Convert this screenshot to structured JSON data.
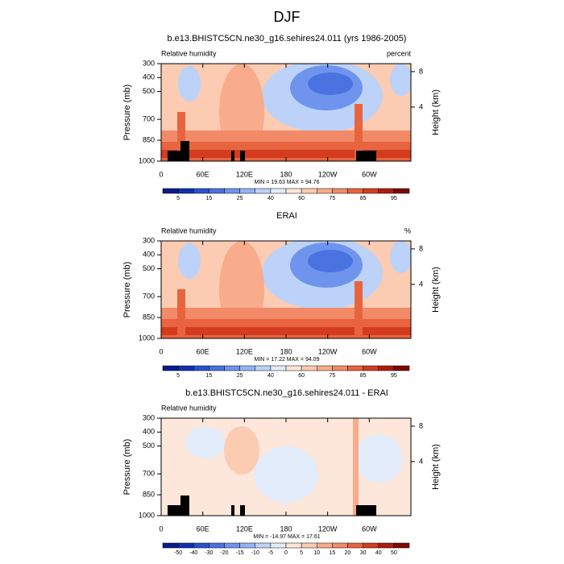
{
  "title": "DJF",
  "chart_data": [
    {
      "type": "contour",
      "title": "b.e13.BHISTC5CN.ne30_g16.sehires24.011 (yrs 1986-2005)",
      "left_label": "Relative humidity",
      "right_label": "percent",
      "ylabel": "Pressure (mb)",
      "y2label": "Height (km)",
      "xlim": [
        0,
        360
      ],
      "xticks": [
        0,
        {
          "value": 60,
          "label": "60E"
        },
        {
          "value": 120,
          "label": "120E"
        },
        180,
        {
          "value": 240,
          "label": "120W"
        },
        {
          "value": 300,
          "label": "60W"
        }
      ],
      "ylim": [
        1000,
        300
      ],
      "yticks": [
        300,
        400,
        500,
        700,
        850,
        1000
      ],
      "y2lim": [
        -2.1,
        8.9
      ],
      "y2ticks": [
        4,
        8
      ],
      "stats": "MIN = 19.63  MAX = 94.76",
      "colorbar": {
        "labels": [
          5,
          15,
          25,
          40,
          60,
          75,
          85,
          95
        ],
        "colors": [
          "#0a1c8c",
          "#1030b0",
          "#2a50d0",
          "#4a72e0",
          "#6e94ee",
          "#94b4f4",
          "#bcd2f8",
          "#e2ecfa",
          "#fde6da",
          "#fbcbb2",
          "#f8ac8c",
          "#f28a68",
          "#e8643e",
          "#d43c20",
          "#b01c0c",
          "#7a0a04"
        ]
      }
    },
    {
      "type": "contour",
      "title": "ERAI",
      "left_label": "Relative humidity",
      "right_label": "%",
      "ylabel": "Pressure (mb)",
      "y2label": "Height (km)",
      "xlim": [
        0,
        360
      ],
      "xticks": [
        0,
        {
          "value": 60,
          "label": "60E"
        },
        {
          "value": 120,
          "label": "120E"
        },
        180,
        {
          "value": 240,
          "label": "120W"
        },
        {
          "value": 300,
          "label": "60W"
        }
      ],
      "ylim": [
        1000,
        300
      ],
      "yticks": [
        300,
        400,
        500,
        700,
        850,
        1000
      ],
      "y2lim": [
        -2.1,
        8.9
      ],
      "y2ticks": [
        4,
        8
      ],
      "stats": "MIN = 17.22  MAX = 94.09",
      "colorbar": {
        "labels": [
          5,
          15,
          25,
          40,
          60,
          75,
          85,
          95
        ],
        "colors": [
          "#0a1c8c",
          "#1030b0",
          "#2a50d0",
          "#4a72e0",
          "#6e94ee",
          "#94b4f4",
          "#bcd2f8",
          "#e2ecfa",
          "#fde6da",
          "#fbcbb2",
          "#f8ac8c",
          "#f28a68",
          "#e8643e",
          "#d43c20",
          "#b01c0c",
          "#7a0a04"
        ]
      }
    },
    {
      "type": "contour",
      "title": "b.e13.BHISTC5CN.ne30_g16.sehires24.011 - ERAI",
      "left_label": "Relative humidity",
      "ylabel": "Pressure (mb)",
      "y2label": "Height (km)",
      "xlim": [
        0,
        360
      ],
      "xticks": [
        0,
        {
          "value": 60,
          "label": "60E"
        },
        {
          "value": 120,
          "label": "120E"
        },
        180,
        {
          "value": 240,
          "label": "120W"
        },
        {
          "value": 300,
          "label": "60W"
        }
      ],
      "ylim": [
        1000,
        300
      ],
      "yticks": [
        300,
        400,
        500,
        700,
        850,
        1000
      ],
      "y2lim": [
        -2.1,
        8.9
      ],
      "y2ticks": [
        4,
        8
      ],
      "stats": "MIN = -14.97  MAX = 17.61",
      "colorbar": {
        "labels": [
          -50,
          -40,
          -30,
          -20,
          -15,
          -10,
          -5,
          0,
          5,
          10,
          15,
          20,
          30,
          40,
          50
        ],
        "colors": [
          "#0a1c8c",
          "#1030b0",
          "#2a50d0",
          "#4a72e0",
          "#6e94ee",
          "#94b4f4",
          "#bcd2f8",
          "#e2ecfa",
          "#fde6da",
          "#fbcbb2",
          "#f8ac8c",
          "#f28a68",
          "#e8643e",
          "#d43c20",
          "#b01c0c",
          "#7a0a04"
        ]
      }
    }
  ]
}
